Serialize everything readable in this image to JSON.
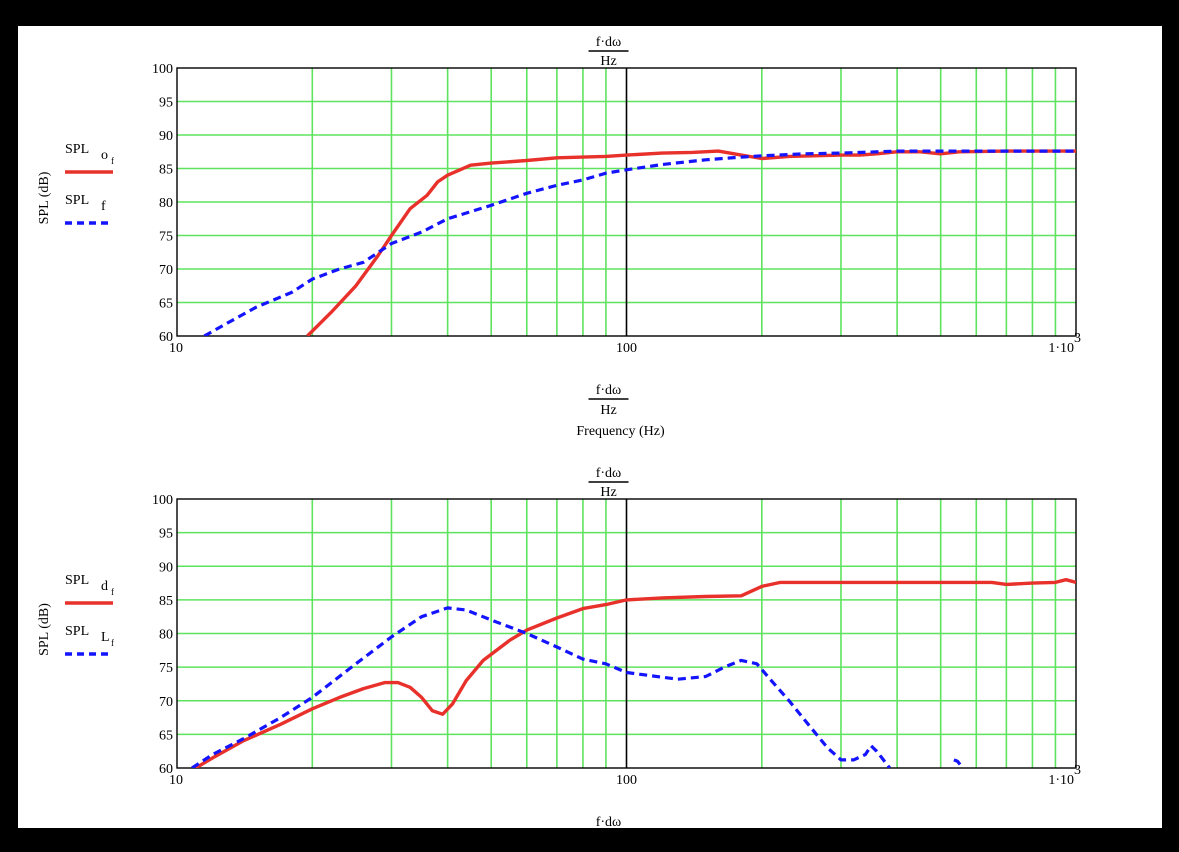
{
  "chart_data": [
    {
      "type": "line",
      "x_scale": "log",
      "xlim": [
        10,
        1000
      ],
      "ylim": [
        60,
        100
      ],
      "x_ticks": [
        10,
        100,
        1000
      ],
      "x_tick_labels": [
        "10",
        "100",
        "1·10"
      ],
      "x_tick_exp": "3",
      "y_ticks": [
        60,
        65,
        70,
        75,
        80,
        85,
        90,
        95,
        100
      ],
      "grid": true,
      "ylabel": "SPL (dB)",
      "top_label_num": "f·dω",
      "top_label_den": "Hz",
      "xlabel_num": "f·dω",
      "xlabel_den": "Hz",
      "xlabel": "Frequency (Hz)",
      "legend": [
        {
          "name": "SPL",
          "sub": "o",
          "subsub": "f",
          "color": "#e8312a",
          "dash": "solid"
        },
        {
          "name": "SPL",
          "sub": "f",
          "subsub": "",
          "color": "#1414ff",
          "dash": "dashed"
        }
      ],
      "series": [
        {
          "name": "SPL o f",
          "color": "#e8312a",
          "dash": "solid",
          "points": [
            [
              19.5,
              60
            ],
            [
              22,
              63.5
            ],
            [
              25,
              67.5
            ],
            [
              28,
              72
            ],
            [
              30,
              75
            ],
            [
              33,
              79
            ],
            [
              36,
              81
            ],
            [
              38,
              83
            ],
            [
              40,
              84
            ],
            [
              45,
              85.5
            ],
            [
              50,
              85.8
            ],
            [
              60,
              86.2
            ],
            [
              70,
              86.6
            ],
            [
              80,
              86.7
            ],
            [
              90,
              86.8
            ],
            [
              100,
              87
            ],
            [
              120,
              87.3
            ],
            [
              140,
              87.4
            ],
            [
              160,
              87.6
            ],
            [
              180,
              87
            ],
            [
              200,
              86.5
            ],
            [
              230,
              86.8
            ],
            [
              260,
              86.9
            ],
            [
              300,
              87
            ],
            [
              330,
              87
            ],
            [
              360,
              87.2
            ],
            [
              400,
              87.5
            ],
            [
              450,
              87.5
            ],
            [
              500,
              87.2
            ],
            [
              550,
              87.5
            ],
            [
              700,
              87.6
            ],
            [
              1000,
              87.6
            ]
          ]
        },
        {
          "name": "SPL f",
          "color": "#1414ff",
          "dash": "dashed",
          "points": [
            [
              11.5,
              60
            ],
            [
              13,
              62
            ],
            [
              15,
              64.3
            ],
            [
              18,
              66.5
            ],
            [
              20,
              68.5
            ],
            [
              23,
              70
            ],
            [
              26,
              71
            ],
            [
              30,
              73.8
            ],
            [
              35,
              75.5
            ],
            [
              40,
              77.5
            ],
            [
              50,
              79.5
            ],
            [
              60,
              81.3
            ],
            [
              70,
              82.5
            ],
            [
              80,
              83.3
            ],
            [
              90,
              84.3
            ],
            [
              100,
              84.8
            ],
            [
              120,
              85.6
            ],
            [
              150,
              86.3
            ],
            [
              180,
              86.7
            ],
            [
              200,
              86.9
            ],
            [
              250,
              87.2
            ],
            [
              300,
              87.3
            ],
            [
              400,
              87.6
            ],
            [
              500,
              87.6
            ],
            [
              700,
              87.6
            ],
            [
              1000,
              87.6
            ]
          ]
        }
      ]
    },
    {
      "type": "line",
      "x_scale": "log",
      "xlim": [
        10,
        1000
      ],
      "ylim": [
        60,
        100
      ],
      "x_ticks": [
        10,
        100,
        1000
      ],
      "x_tick_labels": [
        "10",
        "100",
        "1·10"
      ],
      "x_tick_exp": "3",
      "y_ticks": [
        60,
        65,
        70,
        75,
        80,
        85,
        90,
        95,
        100
      ],
      "grid": true,
      "ylabel": "SPL (dB)",
      "top_label_num": "f·dω",
      "top_label_den": "Hz",
      "xlabel_num": "f·dω",
      "legend": [
        {
          "name": "SPL",
          "sub": "d",
          "subsub": "f",
          "color": "#e8312a",
          "dash": "solid"
        },
        {
          "name": "SPL",
          "sub": "L",
          "subsub": "f",
          "color": "#1414ff",
          "dash": "dashed"
        }
      ],
      "series": [
        {
          "name": "SPL d f",
          "color": "#e8312a",
          "dash": "solid",
          "points": [
            [
              11,
              60
            ],
            [
              12,
              61.5
            ],
            [
              14,
              64
            ],
            [
              17,
              66.5
            ],
            [
              20,
              68.8
            ],
            [
              23,
              70.5
            ],
            [
              26,
              71.8
            ],
            [
              29,
              72.7
            ],
            [
              31,
              72.7
            ],
            [
              33,
              72
            ],
            [
              35,
              70.5
            ],
            [
              37,
              68.5
            ],
            [
              39,
              68
            ],
            [
              41,
              69.5
            ],
            [
              44,
              73
            ],
            [
              48,
              76
            ],
            [
              55,
              79
            ],
            [
              60,
              80.5
            ],
            [
              70,
              82.3
            ],
            [
              80,
              83.7
            ],
            [
              90,
              84.3
            ],
            [
              100,
              85
            ],
            [
              120,
              85.3
            ],
            [
              150,
              85.5
            ],
            [
              180,
              85.6
            ],
            [
              200,
              87
            ],
            [
              220,
              87.6
            ],
            [
              300,
              87.6
            ],
            [
              500,
              87.6
            ],
            [
              650,
              87.6
            ],
            [
              700,
              87.3
            ],
            [
              800,
              87.5
            ],
            [
              900,
              87.6
            ],
            [
              950,
              88
            ],
            [
              1000,
              87.6
            ]
          ]
        },
        {
          "name": "SPL L f",
          "color": "#1414ff",
          "dash": "dashed",
          "points": [
            [
              10.8,
              60
            ],
            [
              12,
              62
            ],
            [
              14,
              64.3
            ],
            [
              17,
              67.5
            ],
            [
              20,
              70.5
            ],
            [
              25,
              75.5
            ],
            [
              30,
              79.5
            ],
            [
              35,
              82.5
            ],
            [
              40,
              83.8
            ],
            [
              44,
              83.5
            ],
            [
              50,
              82
            ],
            [
              60,
              80
            ],
            [
              70,
              78
            ],
            [
              80,
              76.2
            ],
            [
              90,
              75.5
            ],
            [
              100,
              74.2
            ],
            [
              120,
              73.5
            ],
            [
              130,
              73.2
            ],
            [
              150,
              73.6
            ],
            [
              165,
              75
            ],
            [
              180,
              76
            ],
            [
              195,
              75.5
            ],
            [
              210,
              73
            ],
            [
              230,
              70
            ],
            [
              250,
              67
            ],
            [
              280,
              63
            ],
            [
              300,
              61.2
            ],
            [
              320,
              61.2
            ],
            [
              340,
              62
            ],
            [
              350,
              63.3
            ],
            [
              360,
              62.5
            ],
            [
              370,
              61.5
            ],
            [
              385,
              60
            ]
          ]
        },
        {
          "name": "SPL L f (tail)",
          "color": "#1414ff",
          "dash": "dashed",
          "points": [
            [
              535,
              61.2
            ],
            [
              545,
              61
            ],
            [
              560,
              60
            ]
          ]
        }
      ]
    }
  ]
}
